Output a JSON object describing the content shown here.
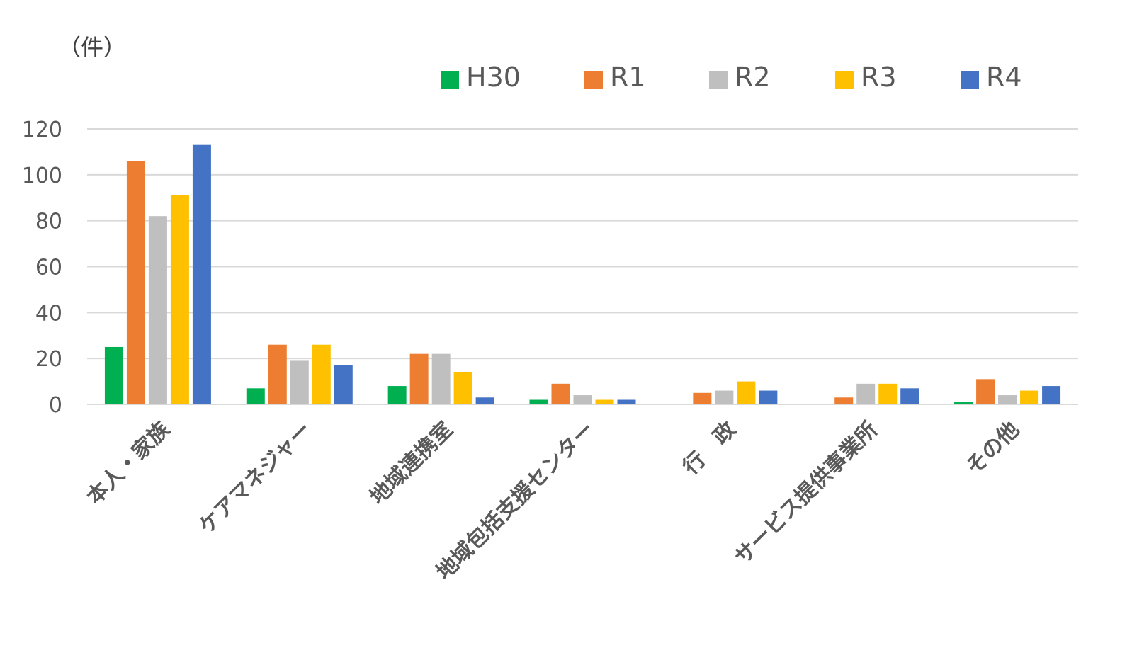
{
  "chart_data": {
    "type": "bar",
    "unit_label": "（件）",
    "categories": [
      "本人・家族",
      "ケアマネジャー",
      "地域連携室",
      "地域包括支援センター",
      "行　政",
      "サービス提供事業所",
      "その他"
    ],
    "series": [
      {
        "name": "H30",
        "color": "#00b050",
        "values": [
          25,
          7,
          8,
          2,
          0,
          0,
          1
        ]
      },
      {
        "name": "R1",
        "color": "#ed7d31",
        "values": [
          106,
          26,
          22,
          9,
          5,
          3,
          11
        ]
      },
      {
        "name": "R2",
        "color": "#bfbfbf",
        "values": [
          82,
          19,
          22,
          4,
          6,
          9,
          4
        ]
      },
      {
        "name": "R3",
        "color": "#ffc000",
        "values": [
          91,
          26,
          14,
          2,
          10,
          9,
          6
        ]
      },
      {
        "name": "R4",
        "color": "#4472c4",
        "values": [
          113,
          17,
          3,
          2,
          6,
          7,
          8
        ]
      }
    ],
    "ylim": [
      0,
      120
    ],
    "yticks": [
      0,
      20,
      40,
      60,
      80,
      100,
      120
    ],
    "grid": true,
    "legend_position": "top-right"
  }
}
